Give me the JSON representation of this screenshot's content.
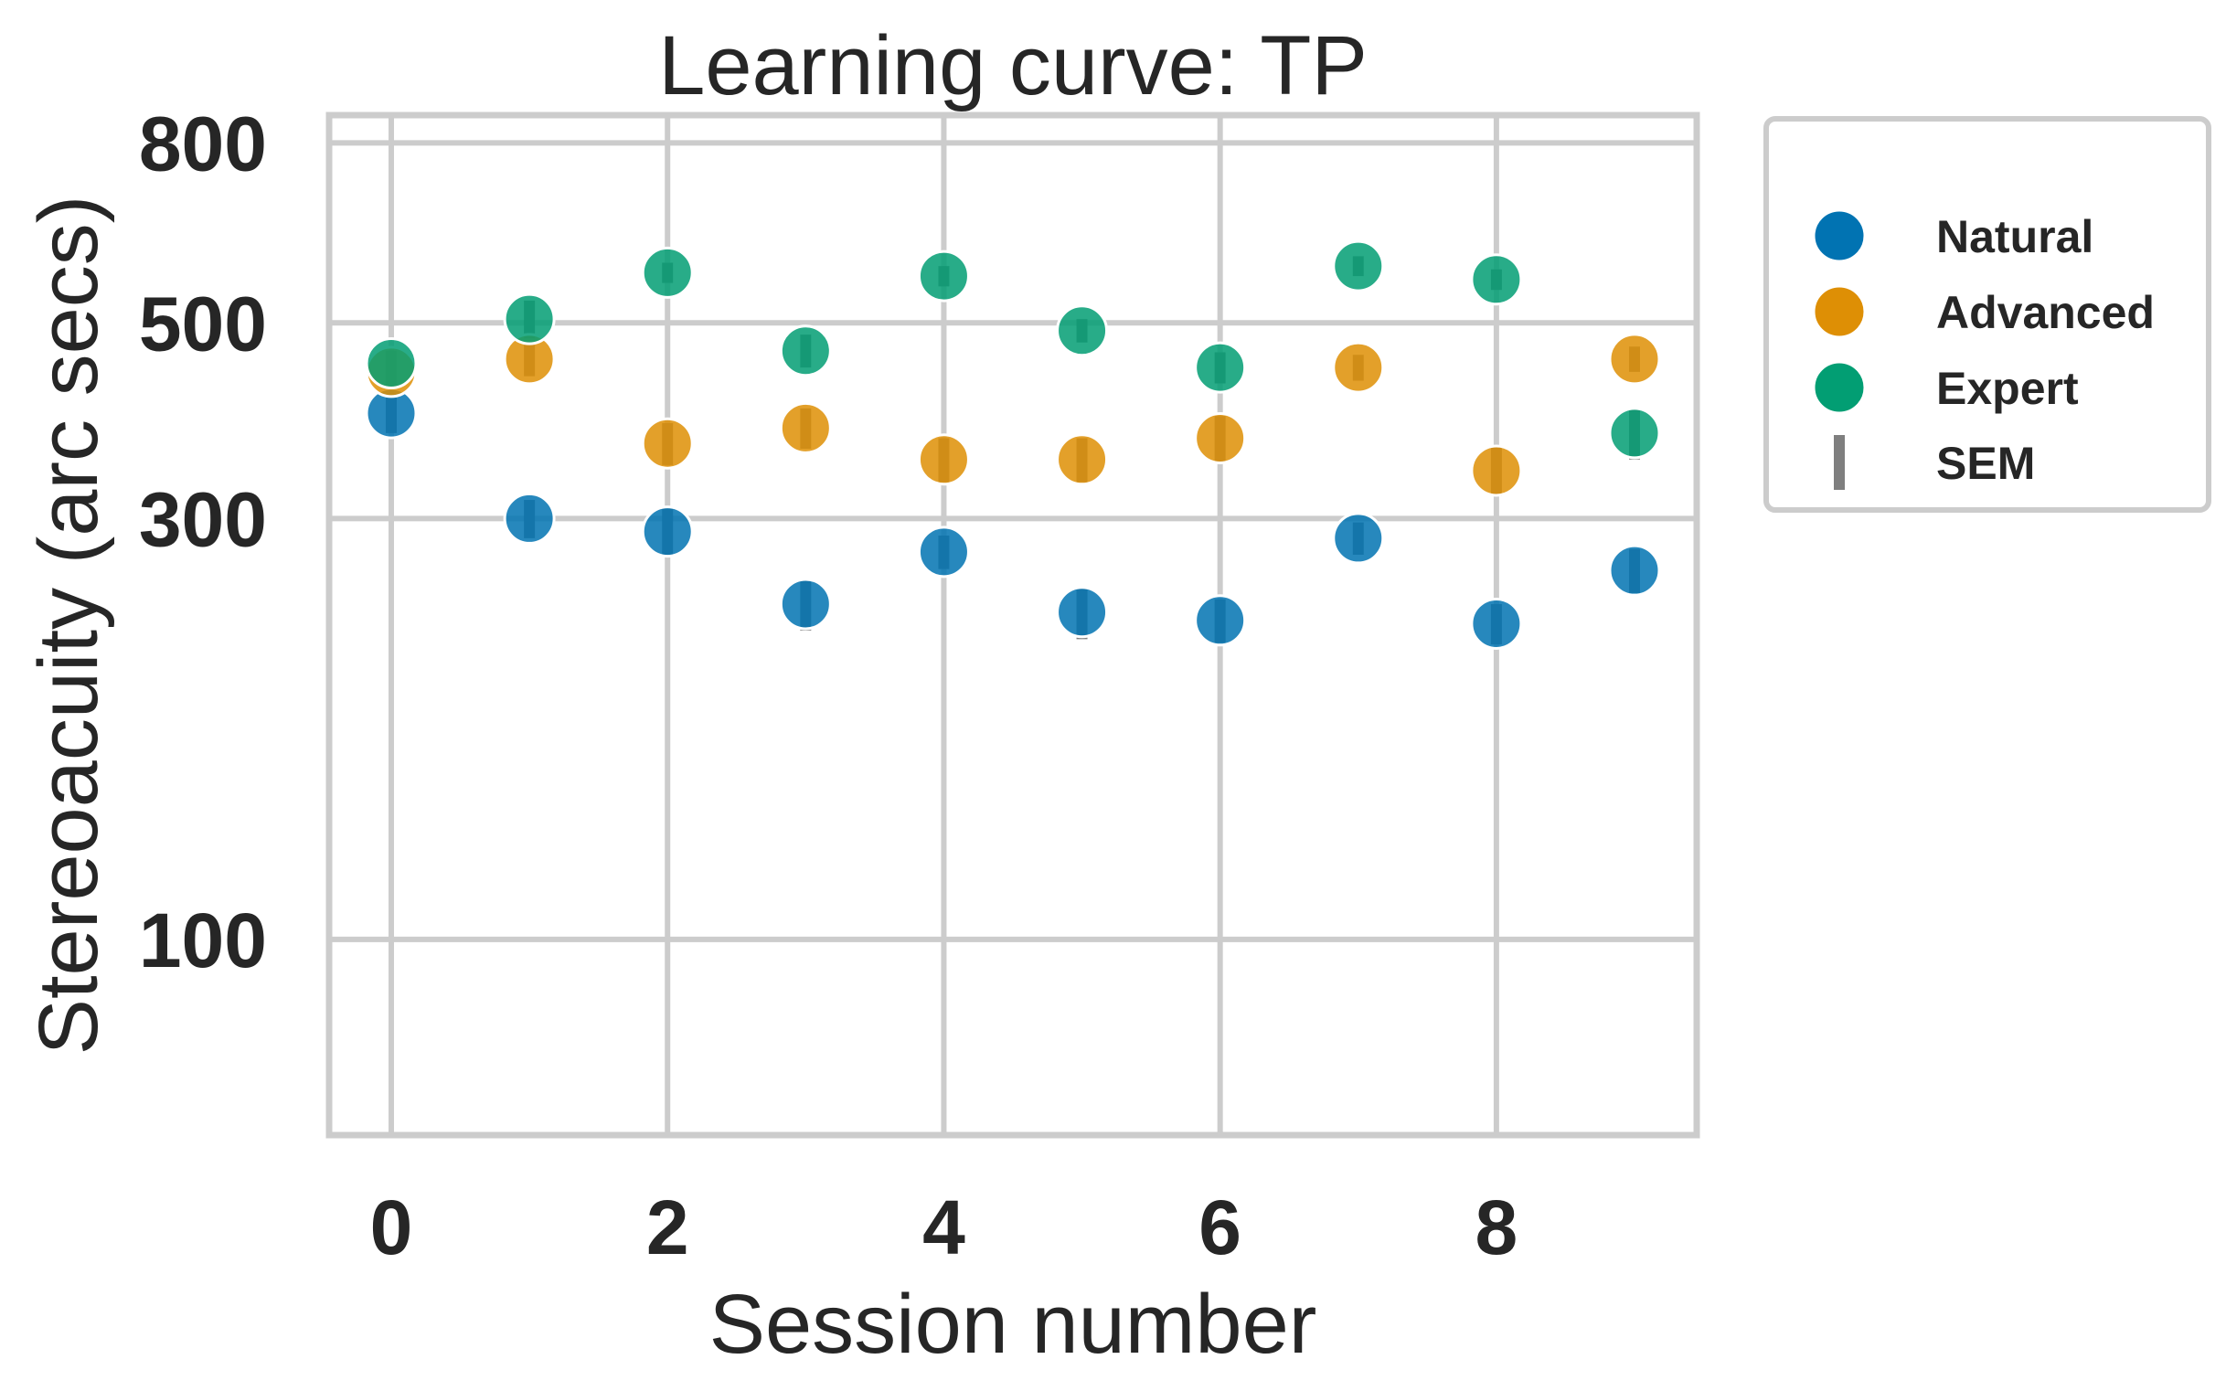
{
  "chart_data": {
    "type": "scatter",
    "title": "Learning curve: TP",
    "xlabel": "Session number",
    "ylabel": "Stereoacuity (arc secs)",
    "xlim": [
      -0.45,
      9.45
    ],
    "ylim": [
      60,
      860
    ],
    "yscale": "log",
    "xticks": [
      0,
      2,
      4,
      6,
      8
    ],
    "yticks": [
      100,
      300,
      500,
      800
    ],
    "grid": true,
    "legend_position": "outside-right-top",
    "x": [
      0,
      1,
      2,
      3,
      4,
      5,
      6,
      7,
      8,
      9
    ],
    "series": [
      {
        "name": "Natural",
        "color": "#0173b2",
        "values": [
          395,
          300,
          290,
          240,
          275,
          235,
          230,
          285,
          228,
          262
        ],
        "sem": [
          20,
          15,
          18,
          16,
          12,
          16,
          13,
          12,
          12,
          15
        ]
      },
      {
        "name": "Advanced",
        "color": "#de8f05",
        "values": [
          440,
          455,
          365,
          380,
          350,
          350,
          370,
          445,
          340,
          455
        ],
        "sem": [
          15,
          20,
          20,
          20,
          20,
          20,
          22,
          15,
          22,
          15
        ]
      },
      {
        "name": "Expert",
        "color": "#029e73",
        "values": [
          450,
          505,
          570,
          465,
          565,
          490,
          445,
          580,
          560,
          375
        ],
        "sem": [
          15,
          25,
          15,
          20,
          15,
          15,
          18,
          15,
          15,
          25
        ]
      }
    ],
    "error_label": "SEM",
    "error_color": "#7f7f7f"
  }
}
